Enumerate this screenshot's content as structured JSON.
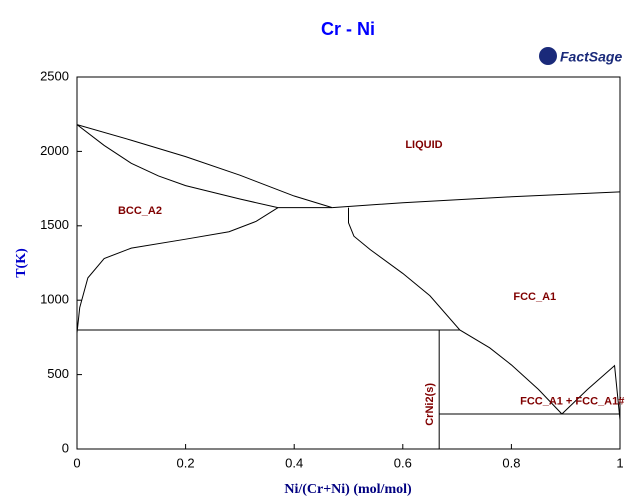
{
  "chart_data": {
    "type": "line",
    "title": "Cr - Ni",
    "logo": "FactSage",
    "x_label": "Ni/(Cr+Ni) (mol/mol)",
    "y_label": "T(K)",
    "xlim": [
      0,
      1
    ],
    "ylim": [
      0,
      2500
    ],
    "xticks": [
      0,
      0.2,
      0.4,
      0.6,
      0.8,
      1
    ],
    "yticks": [
      0,
      500,
      1000,
      1500,
      2000,
      2500
    ],
    "grid": false,
    "series": [
      {
        "color": "#000000",
        "x": [
          0,
          0.1,
          0.2,
          0.3,
          0.4,
          0.47
        ],
        "values": [
          2180,
          2075,
          1965,
          1840,
          1700,
          1622
        ]
      },
      {
        "color": "#000000",
        "x": [
          0,
          0.05,
          0.1,
          0.15,
          0.2,
          0.3,
          0.37,
          0.47
        ],
        "values": [
          2180,
          2040,
          1920,
          1835,
          1770,
          1680,
          1622,
          1622
        ]
      },
      {
        "color": "#000000",
        "x": [
          0.47,
          0.6,
          0.8,
          1
        ],
        "values": [
          1622,
          1655,
          1695,
          1728
        ]
      },
      {
        "color": "#000000",
        "x": [
          0.5,
          0.5,
          0.51,
          0.54,
          0.6,
          0.65,
          0.705,
          0.76,
          0.8,
          0.85,
          0.893
        ],
        "values": [
          1622,
          1520,
          1430,
          1340,
          1180,
          1030,
          800,
          680,
          565,
          400,
          235
        ]
      },
      {
        "color": "#000000",
        "x": [
          0,
          0.005,
          0.02,
          0.05,
          0.1,
          0.2,
          0.28,
          0.33,
          0.37
        ],
        "values": [
          780,
          950,
          1150,
          1280,
          1350,
          1410,
          1460,
          1530,
          1622
        ]
      },
      {
        "color": "#000000",
        "x": [
          0,
          0.705
        ],
        "values": [
          800,
          800
        ]
      },
      {
        "color": "#000000",
        "x": [
          0.667,
          0.667
        ],
        "values": [
          0,
          800
        ]
      },
      {
        "color": "#000000",
        "x": [
          0.667,
          1
        ],
        "values": [
          235,
          235
        ]
      },
      {
        "color": "#000000",
        "x": [
          0.893,
          0.94,
          0.99,
          1
        ],
        "values": [
          235,
          400,
          560,
          195
        ]
      }
    ],
    "annotations": [
      {
        "text": "LIQUID",
        "x": 0.639,
        "y": 2043
      },
      {
        "text": "BCC_A2",
        "x": 0.116,
        "y": 1600
      },
      {
        "text": "FCC_A1",
        "x": 0.843,
        "y": 1021
      },
      {
        "text": "CrNi2(s)",
        "x": 0.65,
        "y": 300,
        "rotation": -90
      },
      {
        "text": "FCC_A1 + FCC_A1#",
        "x": 0.912,
        "y": 320
      }
    ]
  }
}
